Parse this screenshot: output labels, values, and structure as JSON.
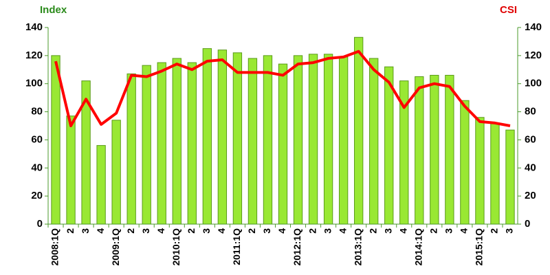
{
  "chart_data": {
    "type": "bar-line",
    "ylabel": "Index",
    "y2label": "CSI",
    "categories": [
      "2008:1Q",
      "2",
      "3",
      "4",
      "2009:1Q",
      "2",
      "3",
      "4",
      "2010:1Q",
      "2",
      "3",
      "4",
      "2011:1Q",
      "2",
      "3",
      "4",
      "2012:1Q",
      "2",
      "3",
      "4",
      "2013:1Q",
      "2",
      "3",
      "4",
      "2014:1Q",
      "2",
      "3",
      "4",
      "2015:1Q",
      "2",
      "3"
    ],
    "series": [
      {
        "type": "bar",
        "color": "#99e833",
        "values": [
          120,
          77,
          102,
          56,
          74,
          107,
          113,
          115,
          118,
          115,
          125,
          124,
          122,
          118,
          120,
          114,
          120,
          121,
          121,
          119,
          133,
          118,
          112,
          102,
          105,
          106,
          106,
          88,
          76,
          72,
          67
        ]
      },
      {
        "type": "line",
        "color": "#ff0000",
        "axis": "y2",
        "values": [
          116,
          70,
          89,
          71,
          79,
          106,
          105,
          109,
          114,
          110,
          116,
          117,
          108,
          108,
          108,
          106,
          114,
          115,
          118,
          119,
          123,
          110,
          101,
          83,
          97,
          100,
          98,
          84,
          73,
          72,
          70
        ]
      }
    ],
    "ylim": [
      0,
      140
    ],
    "yticks": [
      0,
      20,
      40,
      60,
      80,
      100,
      120,
      140
    ],
    "y2lim": [
      0,
      140
    ],
    "y2ticks": [
      0,
      20,
      40,
      60,
      80,
      100,
      120,
      140
    ],
    "grid": false
  }
}
